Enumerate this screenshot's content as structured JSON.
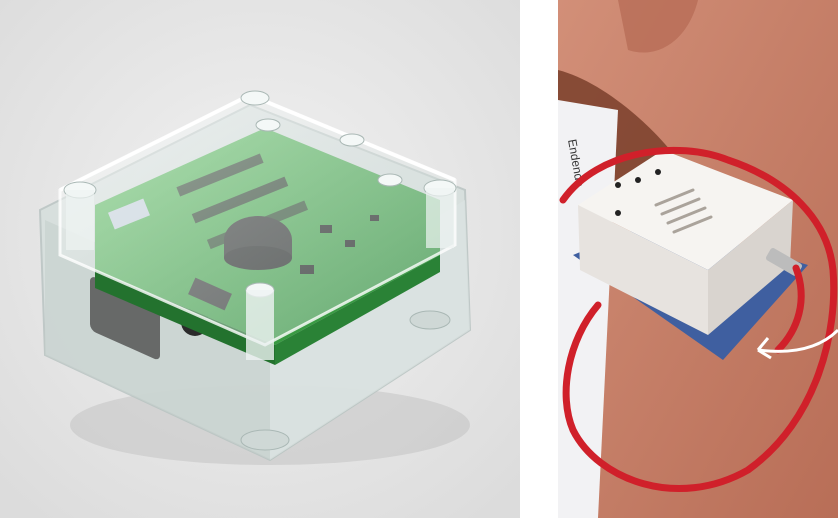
{
  "left_photo": {
    "subject": "clear-acrylic-enclosure-with-green-circuit-board",
    "colors": {
      "background": "#eaeaea",
      "pcb": "#3fa84a",
      "acrylic": "#dfe7e6",
      "buzzer": "#2b2b2b"
    }
  },
  "right_photo": {
    "subject": "white-device-box-on-mat-with-red-cable",
    "colors": {
      "mat": "#c9826a",
      "box": "#f3f1ee",
      "cable": "#d0202a",
      "paper": "#f2f2f4"
    },
    "printed_text": "Endende"
  }
}
